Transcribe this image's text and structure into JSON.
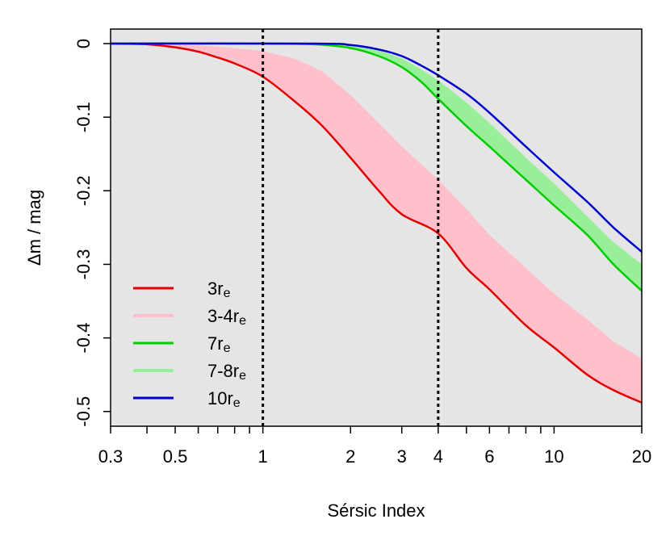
{
  "chart_data": {
    "type": "line",
    "title": "",
    "xlabel": "Sérsic Index",
    "ylabel": "Δm / mag",
    "xscale": "log",
    "xlim": [
      0.3,
      20
    ],
    "ylim": [
      -0.52,
      0.0
    ],
    "x_ticks": [
      {
        "value": 0.3,
        "label": "0.3"
      },
      {
        "value": 0.5,
        "label": "0.5"
      },
      {
        "value": 1,
        "label": "1"
      },
      {
        "value": 2,
        "label": "2"
      },
      {
        "value": 3,
        "label": "3"
      },
      {
        "value": 4,
        "label": "4"
      },
      {
        "value": 6,
        "label": "6"
      },
      {
        "value": 10,
        "label": "10"
      },
      {
        "value": 20,
        "label": "20"
      }
    ],
    "y_ticks": [
      {
        "value": 0,
        "label": "0"
      },
      {
        "value": -0.1,
        "label": "-0.1"
      },
      {
        "value": -0.2,
        "label": "-0.2"
      },
      {
        "value": -0.3,
        "label": "-0.3"
      },
      {
        "value": -0.4,
        "label": "-0.4"
      },
      {
        "value": -0.5,
        "label": "-0.5"
      }
    ],
    "vlines": [
      1,
      4
    ],
    "background": "#e5e5e5",
    "legend_position": "bottom-left",
    "series": [
      {
        "name": "3r_e",
        "label_main": "3r",
        "label_sub": "e",
        "kind": "line",
        "color": "#e00000",
        "points": [
          [
            0.3,
            0
          ],
          [
            0.4,
            -0.001
          ],
          [
            0.5,
            -0.005
          ],
          [
            0.6,
            -0.011
          ],
          [
            0.7,
            -0.019
          ],
          [
            0.8,
            -0.027
          ],
          [
            1.0,
            -0.045
          ],
          [
            1.3,
            -0.08
          ],
          [
            1.6,
            -0.112
          ],
          [
            2.0,
            -0.155
          ],
          [
            2.5,
            -0.2
          ],
          [
            3.0,
            -0.232
          ],
          [
            4.0,
            -0.258
          ],
          [
            5.0,
            -0.305
          ],
          [
            6.0,
            -0.334
          ],
          [
            8.0,
            -0.383
          ],
          [
            10.0,
            -0.413
          ],
          [
            13.0,
            -0.45
          ],
          [
            16.0,
            -0.471
          ],
          [
            20.0,
            -0.488
          ]
        ]
      },
      {
        "name": "3-4r_e",
        "label_main": "3-4r",
        "label_sub": "e",
        "kind": "band",
        "color": "#ffc0cb",
        "upper": [
          [
            0.3,
            0
          ],
          [
            0.5,
            -0.001
          ],
          [
            0.7,
            -0.004
          ],
          [
            1.0,
            -0.01
          ],
          [
            1.3,
            -0.021
          ],
          [
            1.6,
            -0.038
          ],
          [
            2.0,
            -0.07
          ],
          [
            2.5,
            -0.108
          ],
          [
            3.0,
            -0.14
          ],
          [
            4.0,
            -0.185
          ],
          [
            5.0,
            -0.225
          ],
          [
            6.0,
            -0.26
          ],
          [
            8.0,
            -0.305
          ],
          [
            10.0,
            -0.34
          ],
          [
            13.0,
            -0.375
          ],
          [
            16.0,
            -0.405
          ],
          [
            20.0,
            -0.428
          ]
        ],
        "lower": [
          [
            0.3,
            0
          ],
          [
            0.4,
            -0.001
          ],
          [
            0.5,
            -0.005
          ],
          [
            0.6,
            -0.011
          ],
          [
            0.7,
            -0.019
          ],
          [
            0.8,
            -0.027
          ],
          [
            1.0,
            -0.045
          ],
          [
            1.3,
            -0.08
          ],
          [
            1.6,
            -0.112
          ],
          [
            2.0,
            -0.155
          ],
          [
            2.5,
            -0.2
          ],
          [
            3.0,
            -0.232
          ],
          [
            4.0,
            -0.258
          ],
          [
            5.0,
            -0.305
          ],
          [
            6.0,
            -0.334
          ],
          [
            8.0,
            -0.383
          ],
          [
            10.0,
            -0.413
          ],
          [
            13.0,
            -0.45
          ],
          [
            16.0,
            -0.471
          ],
          [
            20.0,
            -0.488
          ]
        ]
      },
      {
        "name": "7r_e",
        "label_main": "7r",
        "label_sub": "e",
        "kind": "line",
        "color": "#00cc00",
        "points": [
          [
            0.3,
            0
          ],
          [
            1.0,
            0
          ],
          [
            1.5,
            -0.001
          ],
          [
            2.0,
            -0.006
          ],
          [
            2.5,
            -0.017
          ],
          [
            3.0,
            -0.032
          ],
          [
            3.5,
            -0.052
          ],
          [
            4.0,
            -0.075
          ],
          [
            5.0,
            -0.112
          ],
          [
            6.0,
            -0.14
          ],
          [
            8.0,
            -0.185
          ],
          [
            10.0,
            -0.22
          ],
          [
            13.0,
            -0.26
          ],
          [
            16.0,
            -0.3
          ],
          [
            20.0,
            -0.336
          ]
        ]
      },
      {
        "name": "7-8r_e",
        "label_main": "7-8r",
        "label_sub": "e",
        "kind": "band",
        "color": "#99ee99",
        "upper": [
          [
            0.3,
            0
          ],
          [
            1.5,
            0
          ],
          [
            2.0,
            -0.002
          ],
          [
            2.5,
            -0.009
          ],
          [
            3.0,
            -0.02
          ],
          [
            3.5,
            -0.035
          ],
          [
            4.0,
            -0.05
          ],
          [
            5.0,
            -0.08
          ],
          [
            6.0,
            -0.108
          ],
          [
            8.0,
            -0.155
          ],
          [
            10.0,
            -0.19
          ],
          [
            13.0,
            -0.235
          ],
          [
            16.0,
            -0.27
          ],
          [
            20.0,
            -0.3
          ]
        ],
        "lower": [
          [
            0.3,
            0
          ],
          [
            1.0,
            0
          ],
          [
            1.5,
            -0.001
          ],
          [
            2.0,
            -0.006
          ],
          [
            2.5,
            -0.017
          ],
          [
            3.0,
            -0.032
          ],
          [
            3.5,
            -0.052
          ],
          [
            4.0,
            -0.075
          ],
          [
            5.0,
            -0.112
          ],
          [
            6.0,
            -0.14
          ],
          [
            8.0,
            -0.185
          ],
          [
            10.0,
            -0.22
          ],
          [
            13.0,
            -0.26
          ],
          [
            16.0,
            -0.3
          ],
          [
            20.0,
            -0.336
          ]
        ]
      },
      {
        "name": "10r_e",
        "label_main": "10r",
        "label_sub": "e",
        "kind": "line",
        "color": "#0000cc",
        "points": [
          [
            0.3,
            0
          ],
          [
            1.5,
            0
          ],
          [
            2.0,
            -0.002
          ],
          [
            2.5,
            -0.008
          ],
          [
            3.0,
            -0.017
          ],
          [
            3.5,
            -0.03
          ],
          [
            4.0,
            -0.043
          ],
          [
            5.0,
            -0.068
          ],
          [
            6.0,
            -0.094
          ],
          [
            8.0,
            -0.14
          ],
          [
            10.0,
            -0.175
          ],
          [
            13.0,
            -0.215
          ],
          [
            16.0,
            -0.25
          ],
          [
            20.0,
            -0.283
          ]
        ]
      }
    ]
  }
}
